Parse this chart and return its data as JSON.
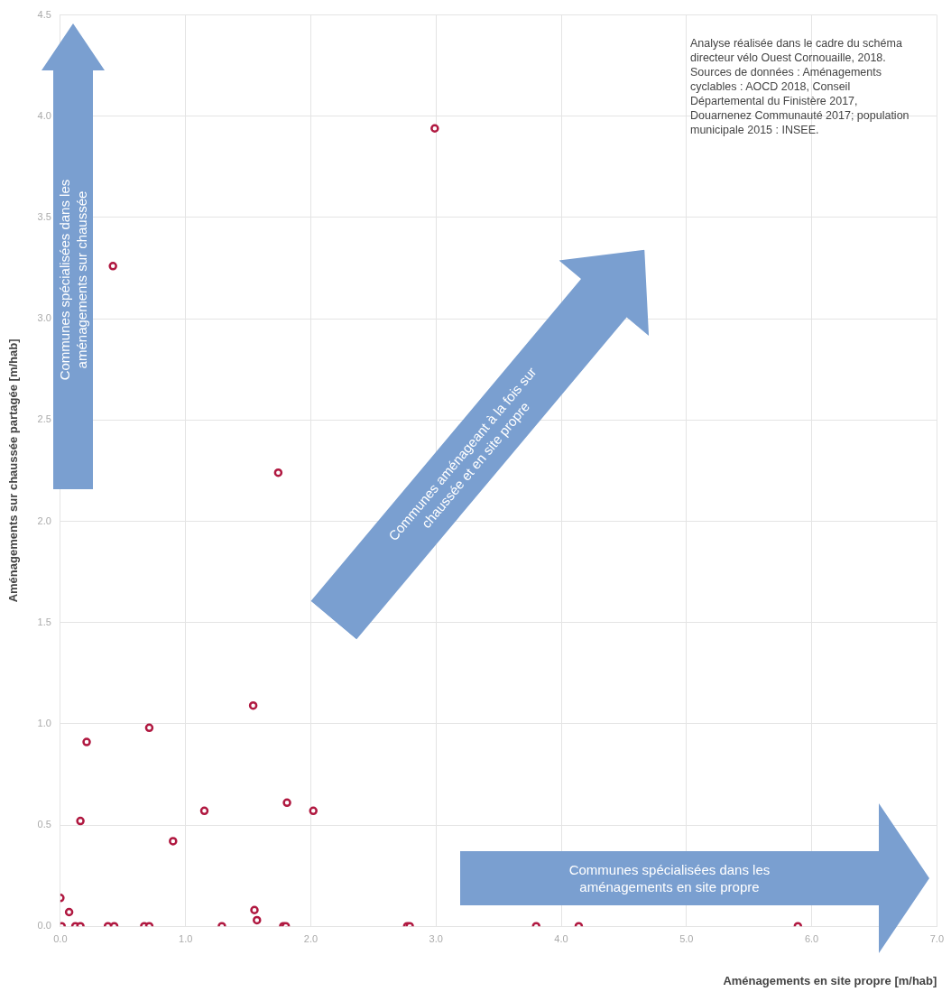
{
  "chart_data": {
    "type": "scatter",
    "xlabel": "Aménagements en site propre [m/hab]",
    "ylabel": "Aménagements sur chaussée partagée [m/hab]",
    "x": [
      0.0,
      0.07,
      0.01,
      0.12,
      0.16,
      0.38,
      0.43,
      0.67,
      0.71,
      1.29,
      1.78,
      1.8,
      2.77,
      2.79,
      3.8,
      4.14,
      5.89,
      0.21,
      0.16,
      0.71,
      0.9,
      1.15,
      1.54,
      1.81,
      2.02,
      1.55,
      1.57,
      0.42,
      1.74,
      2.99
    ],
    "values": [
      0.14,
      0.07,
      0.0,
      0.0,
      0.0,
      0.0,
      0.0,
      0.0,
      0.0,
      0.0,
      0.0,
      0.0,
      0.0,
      0.0,
      0.0,
      0.0,
      0.0,
      0.91,
      0.52,
      0.98,
      0.42,
      0.57,
      1.09,
      0.61,
      0.57,
      0.08,
      0.03,
      3.26,
      2.24,
      3.94
    ],
    "color": "#b01840",
    "marker": "circle",
    "grid": true,
    "xlim": [
      0,
      7
    ],
    "ylim": [
      0,
      4.5
    ],
    "xticks": [
      {
        "value": 0,
        "label": "0.0"
      },
      {
        "value": 1,
        "label": "1.0"
      },
      {
        "value": 2,
        "label": "2.0"
      },
      {
        "value": 3,
        "label": "3.0"
      },
      {
        "value": 4,
        "label": "4.0"
      },
      {
        "value": 5,
        "label": "5.0"
      },
      {
        "value": 6,
        "label": "6.0"
      },
      {
        "value": 7,
        "label": "7.0"
      }
    ],
    "yticks": [
      {
        "value": 0,
        "label": "0.0"
      },
      {
        "value": 0.5,
        "label": "0.5"
      },
      {
        "value": 1,
        "label": "1.0"
      },
      {
        "value": 1.5,
        "label": "1.5"
      },
      {
        "value": 2,
        "label": "2.0"
      },
      {
        "value": 2.5,
        "label": "2.5"
      },
      {
        "value": 3,
        "label": "3.0"
      },
      {
        "value": 3.5,
        "label": "3.5"
      },
      {
        "value": 4,
        "label": "4.0"
      },
      {
        "value": 4.5,
        "label": "4.5"
      }
    ],
    "annotations": [
      "Analyse réalisée dans le cadre du schéma directeur vélo Ouest Cornouaille, 2018. Sources de données : Aménagements cyclables : AOCD 2018, Conseil Départemental du Finistère 2017, Douarnenez Communauté 2017; population municipale 2015 : INSEE.",
      "Communes spécialisées dans les aménagements sur chaussée",
      "Communes aménageant à la fois sur chaussée et en site propre",
      "Communes spécialisées dans les aménagements en site propre"
    ]
  }
}
